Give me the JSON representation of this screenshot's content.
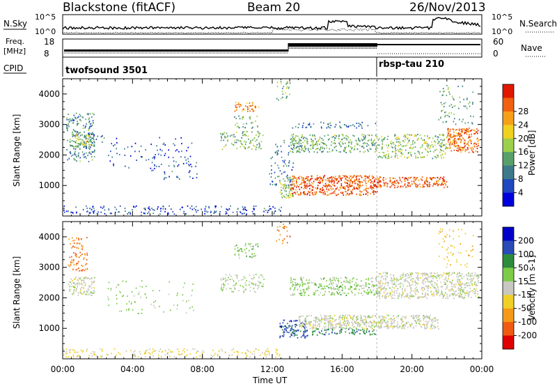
{
  "header": {
    "station": "Blackstone (fitACF)",
    "beam": "Beam 20",
    "date": "26/Nov/2013"
  },
  "noise_panel": {
    "left_label": "N.Sky",
    "right_label": "N.Search",
    "ticks_left": [
      "10^5",
      "10^0"
    ],
    "ticks_right": [
      "10^5",
      "10^0"
    ]
  },
  "freq_panel": {
    "left_label_1": "Freq.",
    "left_label_2": "[MHz]",
    "right_label": "Nave",
    "ticks_left": [
      "18",
      "8"
    ],
    "ticks_right": [
      "60",
      "0"
    ]
  },
  "cpid_panel": {
    "label": "CPID",
    "programs": [
      {
        "name": "twofsound 3501",
        "start": "00:00"
      },
      {
        "name": "rbsp-tau 210",
        "start": "18:00"
      }
    ]
  },
  "time_axis": {
    "label": "Time UT",
    "ticks": [
      "00:00",
      "04:00",
      "08:00",
      "12:00",
      "16:00",
      "20:00",
      "00:00"
    ]
  },
  "chart_data": [
    {
      "type": "heatmap",
      "title": "Power",
      "ylabel": "Slant Range [km]",
      "xlabel": "",
      "x_range_hours": [
        0,
        24
      ],
      "ylim": [
        0,
        4500
      ],
      "yticks": [
        1000,
        2000,
        3000,
        4000
      ],
      "colorbar": {
        "label": "Power [dB]",
        "range": [
          0,
          32
        ],
        "ticks": [
          "4",
          "8",
          "12",
          "16",
          "20",
          "24",
          "28"
        ],
        "colors": [
          "#0000dc",
          "#2048c0",
          "#3c7a8a",
          "#58a06a",
          "#9ccf4a",
          "#f0d020",
          "#f5a018",
          "#f06010",
          "#e01800"
        ]
      },
      "regions": [
        {
          "t0": 0.2,
          "t1": 1.8,
          "r0": 1800,
          "r1": 3400,
          "value": 10,
          "density": 0.45
        },
        {
          "t0": 0.5,
          "t1": 1.6,
          "r0": 2250,
          "r1": 2700,
          "value": 17,
          "density": 0.55
        },
        {
          "t0": 1.5,
          "t1": 2.5,
          "r0": 2400,
          "r1": 2700,
          "value": 8,
          "density": 0.3
        },
        {
          "t0": 2.5,
          "t1": 7.5,
          "r0": 1600,
          "r1": 2600,
          "value": 6,
          "density": 0.08
        },
        {
          "t0": 5.0,
          "t1": 7.8,
          "r0": 1200,
          "r1": 2000,
          "value": 7,
          "density": 0.1
        },
        {
          "t0": 0.0,
          "t1": 12.5,
          "r0": 80,
          "r1": 350,
          "value": 6,
          "density": 0.3
        },
        {
          "t0": 9.0,
          "t1": 11.5,
          "r0": 2200,
          "r1": 2800,
          "value": 14,
          "density": 0.35
        },
        {
          "t0": 9.8,
          "t1": 11.2,
          "r0": 3450,
          "r1": 3750,
          "value": 24,
          "density": 0.55
        },
        {
          "t0": 9.8,
          "t1": 11.2,
          "r0": 2900,
          "r1": 3300,
          "value": 12,
          "density": 0.3
        },
        {
          "t0": 12.2,
          "t1": 13.0,
          "r0": 3800,
          "r1": 4450,
          "value": 14,
          "density": 0.3
        },
        {
          "t0": 11.8,
          "t1": 13.2,
          "r0": 1000,
          "r1": 2500,
          "value": 8,
          "density": 0.2
        },
        {
          "t0": 12.4,
          "t1": 13.2,
          "r0": 600,
          "r1": 1300,
          "value": 16,
          "density": 0.6
        },
        {
          "t0": 13.0,
          "t1": 18.0,
          "r0": 700,
          "r1": 1350,
          "value": 27,
          "density": 0.8
        },
        {
          "t0": 18.0,
          "t1": 22.0,
          "r0": 950,
          "r1": 1300,
          "value": 27,
          "density": 0.75
        },
        {
          "t0": 13.0,
          "t1": 18.0,
          "r0": 2100,
          "r1": 2700,
          "value": 13,
          "density": 0.55
        },
        {
          "t0": 18.0,
          "t1": 22.0,
          "r0": 1900,
          "r1": 2700,
          "value": 15,
          "density": 0.45
        },
        {
          "t0": 22.0,
          "t1": 23.8,
          "r0": 2100,
          "r1": 2900,
          "value": 26,
          "density": 0.8
        },
        {
          "t0": 21.5,
          "t1": 23.5,
          "r0": 3000,
          "r1": 4300,
          "value": 12,
          "density": 0.15
        },
        {
          "t0": 13.0,
          "t1": 18.0,
          "r0": 2900,
          "r1": 3100,
          "value": 8,
          "density": 0.3
        }
      ]
    },
    {
      "type": "heatmap",
      "title": "Velocity",
      "ylabel": "Slant Range [km]",
      "xlabel": "Time UT",
      "x_range_hours": [
        0,
        24
      ],
      "ylim": [
        0,
        4500
      ],
      "yticks": [
        1000,
        2000,
        3000,
        4000
      ],
      "colorbar": {
        "label": "Velocity [m s-1]",
        "range": [
          -250,
          250
        ],
        "ticks": [
          "200",
          "100",
          "50",
          "15",
          "-15",
          "-50",
          "-100",
          "-200"
        ],
        "colors": [
          "#0000c8",
          "#2a4ab8",
          "#2c8c3c",
          "#7ccc48",
          "#c8c8c0",
          "#f0d028",
          "#f59a18",
          "#f05a10",
          "#e00000"
        ]
      },
      "regions": [
        {
          "t0": 0.3,
          "t1": 1.4,
          "r0": 2900,
          "r1": 4000,
          "value": -150,
          "density": 0.35
        },
        {
          "t0": 0.3,
          "t1": 1.8,
          "r0": 2100,
          "r1": 2700,
          "value": 0,
          "density": 0.7
        },
        {
          "t0": 0.0,
          "t1": 12.5,
          "r0": 80,
          "r1": 350,
          "value": -40,
          "density": 0.3
        },
        {
          "t0": 2.5,
          "t1": 7.5,
          "r0": 1500,
          "r1": 2600,
          "value": 40,
          "density": 0.08
        },
        {
          "t0": 9.0,
          "t1": 11.5,
          "r0": 2200,
          "r1": 2800,
          "value": 20,
          "density": 0.35
        },
        {
          "t0": 9.8,
          "t1": 11.2,
          "r0": 3300,
          "r1": 3800,
          "value": 60,
          "density": 0.35
        },
        {
          "t0": 12.2,
          "t1": 13.0,
          "r0": 3800,
          "r1": 4450,
          "value": -150,
          "density": 0.25
        },
        {
          "t0": 12.4,
          "t1": 14.0,
          "r0": 700,
          "r1": 1300,
          "value": 160,
          "density": 0.55
        },
        {
          "t0": 13.5,
          "t1": 21.5,
          "r0": 1000,
          "r1": 1450,
          "value": 0,
          "density": 0.85
        },
        {
          "t0": 13.0,
          "t1": 18.0,
          "r0": 800,
          "r1": 1000,
          "value": 120,
          "density": 0.5
        },
        {
          "t0": 13.0,
          "t1": 18.0,
          "r0": 2100,
          "r1": 2700,
          "value": 50,
          "density": 0.5
        },
        {
          "t0": 18.0,
          "t1": 23.8,
          "r0": 2000,
          "r1": 2850,
          "value": 0,
          "density": 0.7
        },
        {
          "t0": 21.5,
          "t1": 23.5,
          "r0": 3000,
          "r1": 4300,
          "value": -60,
          "density": 0.12
        }
      ]
    }
  ]
}
